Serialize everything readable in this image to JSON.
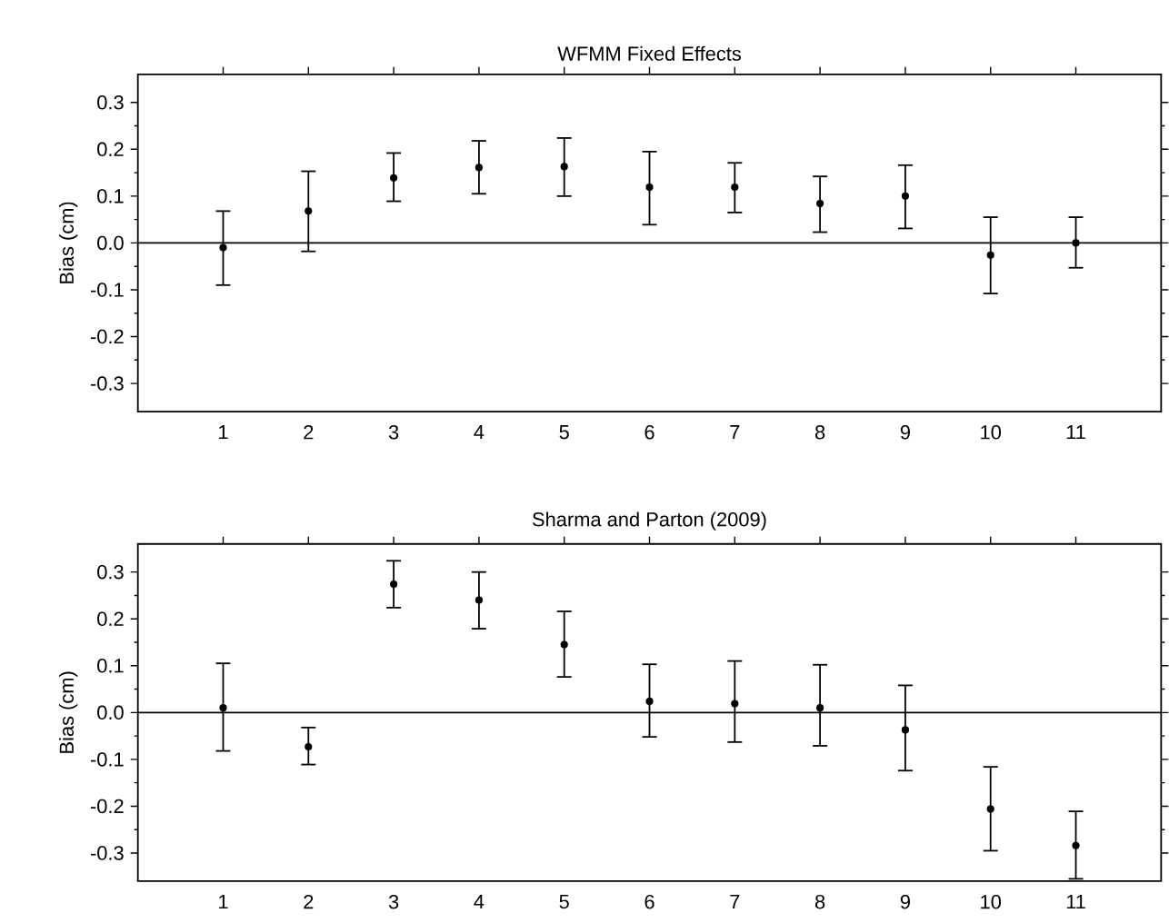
{
  "chart_data": [
    {
      "type": "scatter",
      "title": "WFMM Fixed Effects",
      "ylabel": "Bias (cm)",
      "x": [
        1,
        2,
        3,
        4,
        5,
        6,
        7,
        8,
        9,
        10,
        11
      ],
      "values": [
        -0.01,
        0.068,
        0.139,
        0.161,
        0.163,
        0.119,
        0.119,
        0.084,
        0.1,
        -0.026,
        0.0
      ],
      "errors": [
        [
          -0.09,
          0.068
        ],
        [
          -0.018,
          0.153
        ],
        [
          0.089,
          0.192
        ],
        [
          0.105,
          0.218
        ],
        [
          0.1,
          0.224
        ],
        [
          0.039,
          0.195
        ],
        [
          0.065,
          0.171
        ],
        [
          0.023,
          0.142
        ],
        [
          0.031,
          0.166
        ],
        [
          -0.108,
          0.055
        ],
        [
          -0.053,
          0.055
        ]
      ],
      "color": "#000000",
      "xlim": [
        0,
        12
      ],
      "xticks": [
        1,
        2,
        3,
        4,
        5,
        6,
        7,
        8,
        9,
        10,
        11
      ],
      "ylim": [
        -0.36,
        0.36
      ],
      "yticks": [
        {
          "value": -0.3,
          "label": "-0.3"
        },
        {
          "value": -0.2,
          "label": "-0.2"
        },
        {
          "value": -0.1,
          "label": "-0.1"
        },
        {
          "value": 0,
          "label": "0.0"
        },
        {
          "value": 0.1,
          "label": "0.1"
        },
        {
          "value": 0.2,
          "label": "0.2"
        },
        {
          "value": 0.3,
          "label": "0.3"
        }
      ],
      "ref_lines": [
        {
          "axis": "y",
          "value": 0,
          "color": "#000000"
        }
      ],
      "grid": false
    },
    {
      "type": "scatter",
      "title": "Sharma and Parton (2009)",
      "ylabel": "Bias (cm)",
      "x": [
        1,
        2,
        3,
        4,
        5,
        6,
        7,
        8,
        9,
        10,
        11
      ],
      "values": [
        0.01,
        -0.073,
        0.274,
        0.24,
        0.145,
        0.024,
        0.019,
        0.01,
        -0.037,
        -0.206,
        -0.284
      ],
      "errors": [
        [
          -0.082,
          0.105
        ],
        [
          -0.111,
          -0.032
        ],
        [
          0.224,
          0.324
        ],
        [
          0.179,
          0.3
        ],
        [
          0.076,
          0.216
        ],
        [
          -0.052,
          0.103
        ],
        [
          -0.063,
          0.11
        ],
        [
          -0.071,
          0.102
        ],
        [
          -0.124,
          0.058
        ],
        [
          -0.295,
          -0.116
        ],
        [
          -0.355,
          -0.211
        ]
      ],
      "color": "#000000",
      "xlim": [
        0,
        12
      ],
      "xticks": [
        1,
        2,
        3,
        4,
        5,
        6,
        7,
        8,
        9,
        10,
        11
      ],
      "ylim": [
        -0.36,
        0.36
      ],
      "yticks": [
        {
          "value": -0.3,
          "label": "-0.3"
        },
        {
          "value": -0.2,
          "label": "-0.2"
        },
        {
          "value": -0.1,
          "label": "-0.1"
        },
        {
          "value": 0,
          "label": "0.0"
        },
        {
          "value": 0.1,
          "label": "0.1"
        },
        {
          "value": 0.2,
          "label": "0.2"
        },
        {
          "value": 0.3,
          "label": "0.3"
        }
      ],
      "ref_lines": [
        {
          "axis": "y",
          "value": 0,
          "color": "#000000"
        }
      ],
      "grid": false
    }
  ]
}
